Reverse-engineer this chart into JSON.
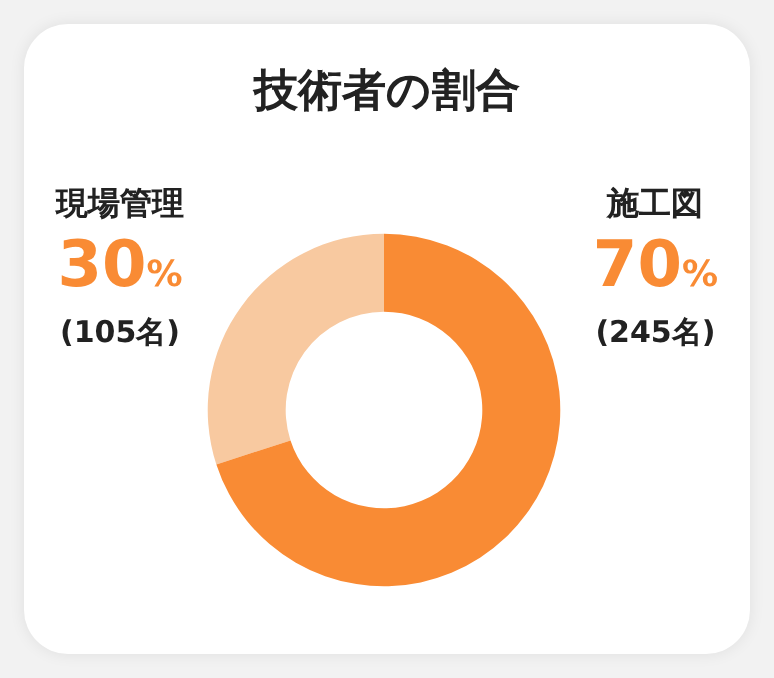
{
  "chart_data": {
    "type": "donut",
    "title": "技術者の割合",
    "categories": [
      "現場管理",
      "施工図"
    ],
    "values": [
      30,
      70
    ],
    "colors": [
      "#f8c9a0",
      "#f98b34"
    ],
    "value_labels": [
      "30%",
      "70%"
    ],
    "annotations": [
      "(105名)",
      "(245名)"
    ],
    "legend": false
  }
}
